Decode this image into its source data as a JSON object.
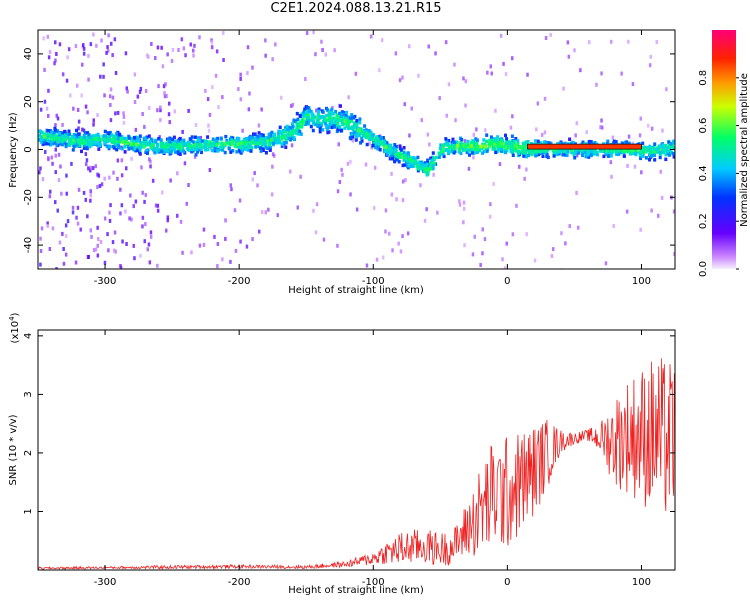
{
  "title": "C2E1.2024.088.13.21.R15",
  "chart_data": [
    {
      "type": "heatmap",
      "xlabel": "Height of straight line (km)",
      "ylabel": "Frequency (Hz)",
      "xlim": [
        -350,
        125
      ],
      "ylim": [
        -50,
        50
      ],
      "xticks": [
        -300,
        -200,
        -100,
        0,
        100
      ],
      "yticks": [
        -40,
        -20,
        0,
        20,
        40
      ],
      "grid": false,
      "colorbar": {
        "label": "Normalized spectral amplitude",
        "range": [
          0,
          1
        ],
        "ticks": [
          0.0,
          0.2,
          0.4,
          0.6,
          0.8
        ]
      },
      "ridge": {
        "x": [
          -345,
          -320,
          -300,
          -280,
          -260,
          -240,
          -220,
          -200,
          -180,
          -160,
          -150,
          -140,
          -130,
          -120,
          -110,
          -100,
          -90,
          -80,
          -70,
          -60,
          -50,
          -40,
          -30,
          -20,
          -10,
          0,
          15,
          30,
          50,
          70,
          90,
          100,
          110,
          125
        ],
        "y": [
          6,
          4,
          5,
          3,
          2,
          2,
          3,
          3,
          4,
          8,
          15,
          13,
          14,
          12,
          8,
          5,
          1,
          -2,
          -5,
          -8,
          1,
          2,
          2,
          2,
          3,
          2,
          1,
          1,
          1,
          1,
          1,
          0,
          0,
          2
        ]
      },
      "highlight_segment": {
        "x": [
          15,
          100
        ],
        "y": 1,
        "value": 0.85
      }
    },
    {
      "type": "line",
      "xlabel": "Height of straight line (km)",
      "ylabel": "SNR (10 * v/v)",
      "yscale_note": "(x10^4)",
      "xlim": [
        -350,
        125
      ],
      "ylim": [
        0,
        4.1
      ],
      "xticks": [
        -300,
        -200,
        -100,
        0,
        100
      ],
      "yticks": [
        1,
        2,
        3,
        4
      ],
      "grid": false,
      "series": [
        {
          "color": "#ee2222",
          "x": [
            -350,
            -300,
            -250,
            -200,
            -150,
            -120,
            -100,
            -90,
            -80,
            -70,
            -60,
            -50,
            -40,
            -30,
            -20,
            -10,
            0,
            10,
            20,
            30,
            40,
            50,
            60,
            70,
            80,
            90,
            100,
            110,
            120,
            125
          ],
          "y": [
            0.03,
            0.04,
            0.05,
            0.06,
            0.05,
            0.1,
            0.2,
            0.3,
            0.35,
            0.4,
            0.4,
            0.35,
            0.4,
            0.7,
            1.0,
            1.3,
            1.3,
            1.5,
            1.7,
            2.0,
            2.2,
            2.25,
            2.3,
            2.25,
            2.2,
            2.3,
            2.3,
            2.3,
            2.2,
            2.3
          ],
          "spread": [
            0.02,
            0.02,
            0.03,
            0.03,
            0.03,
            0.05,
            0.12,
            0.2,
            0.3,
            0.3,
            0.3,
            0.3,
            0.3,
            0.5,
            0.8,
            1.0,
            1.0,
            0.9,
            0.8,
            0.6,
            0.2,
            0.1,
            0.1,
            0.3,
            0.8,
            1.0,
            1.2,
            1.4,
            1.4,
            1.3
          ]
        }
      ]
    }
  ]
}
